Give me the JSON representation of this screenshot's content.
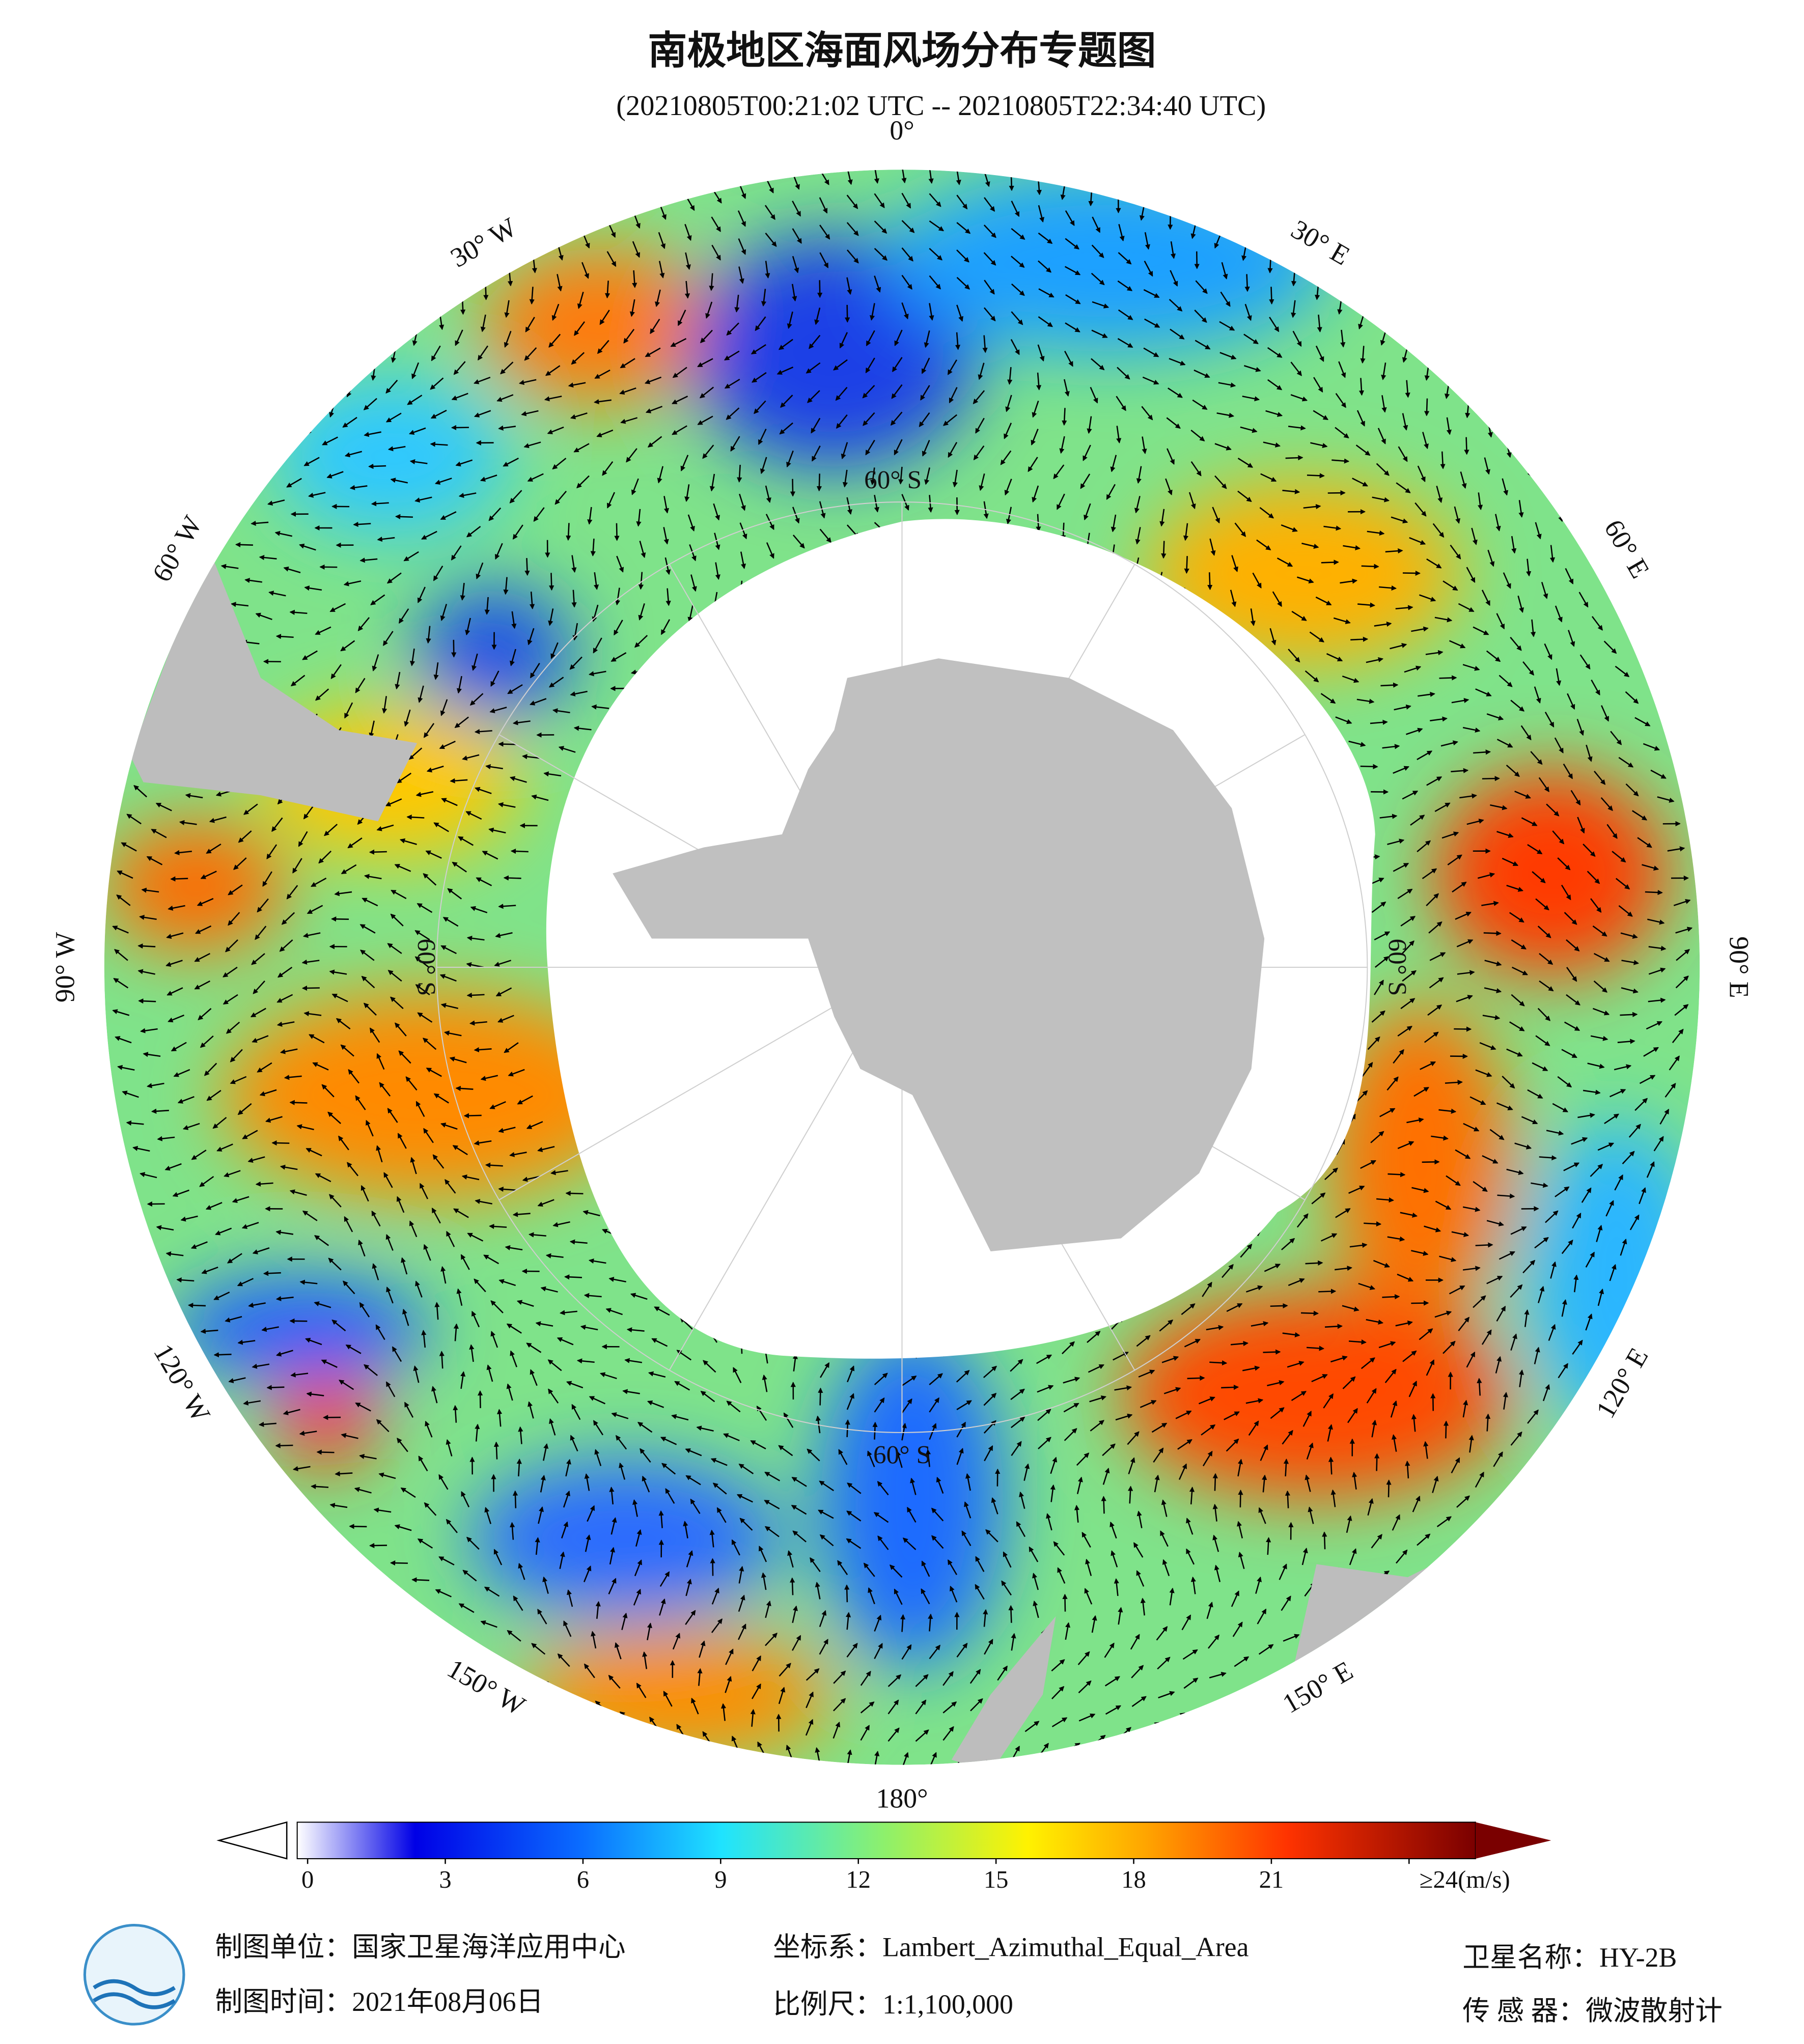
{
  "title": "南极地区海面风场分布专题图",
  "subtitle": "(20210805T00:21:02 UTC -- 20210805T22:34:40 UTC)",
  "map": {
    "lon_labels": [
      "0°",
      "30° E",
      "60° E",
      "90° E",
      "120° E",
      "150° E",
      "180°",
      "150° W",
      "120° W",
      "90° W",
      "60° W",
      "30° W"
    ],
    "lat_labels": [
      "60° S",
      "60° S",
      "60° S",
      "60° S"
    ]
  },
  "colorbar": {
    "range": [
      0,
      24
    ],
    "ticks": [
      0,
      3,
      6,
      9,
      12,
      15,
      18,
      21,
      {
        "value": 24,
        "label": "≥24(m/s)"
      }
    ]
  },
  "footer": {
    "unit": "制图单位：国家卫星海洋应用中心",
    "time": "制图时间：2021年08月06日",
    "crs": "坐标系：Lambert_Azimuthal_Equal_Area",
    "scale": "比例尺：1:1,100,000",
    "satellite": "卫星名称：HY-2B",
    "sensor": "传 感 器：微波散射计"
  }
}
